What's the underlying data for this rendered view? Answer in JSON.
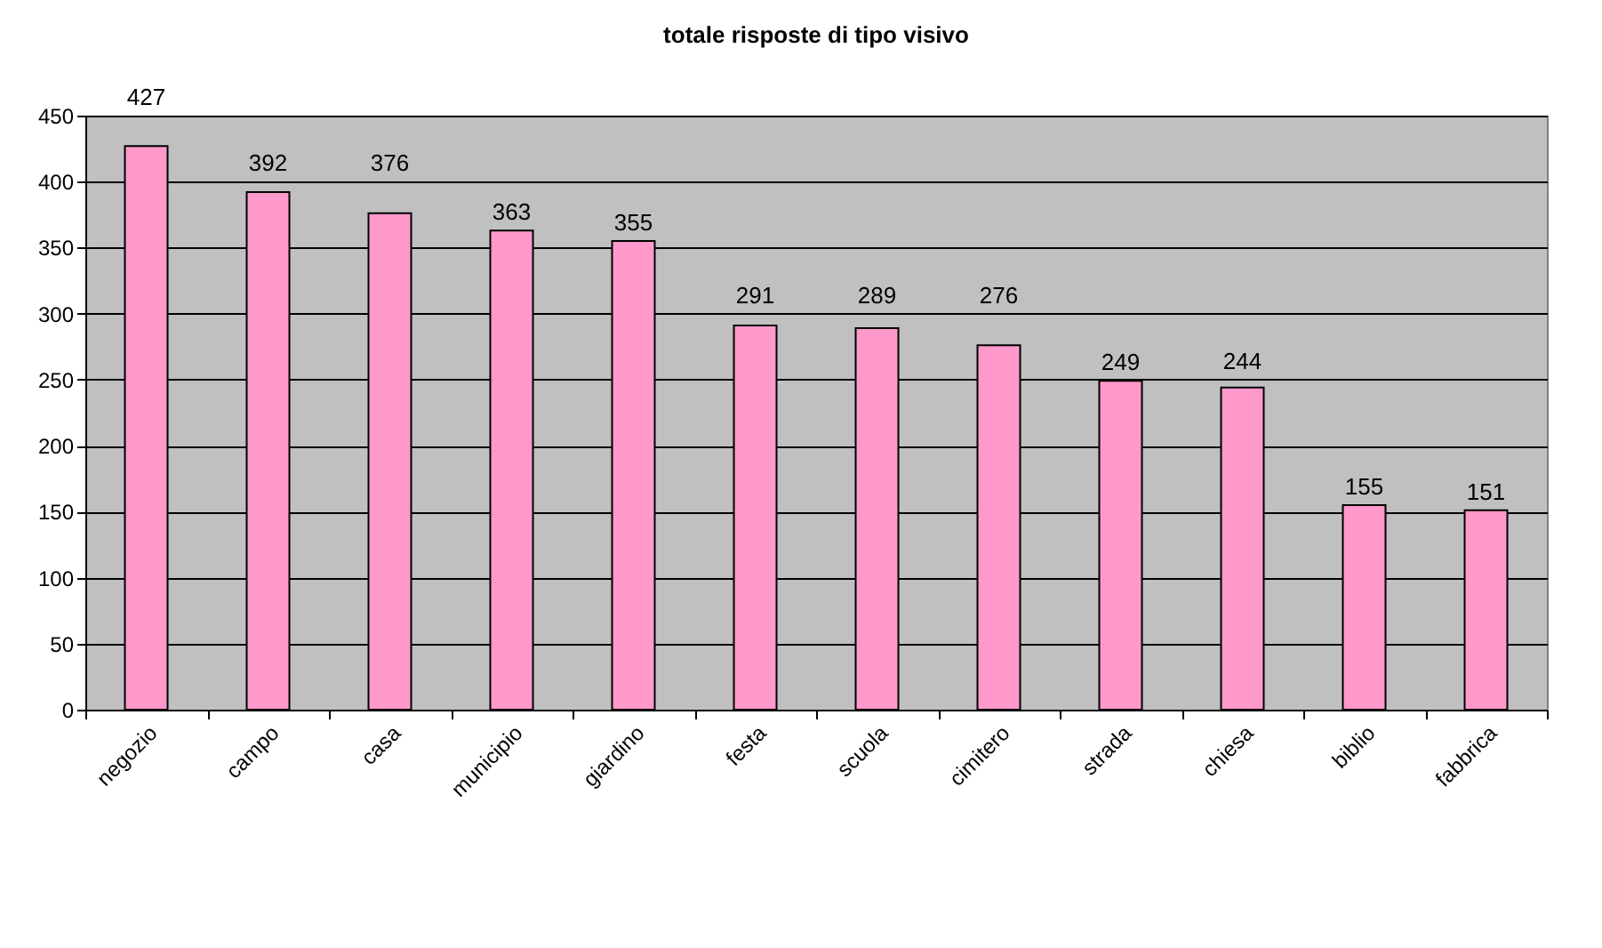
{
  "chart_data": {
    "type": "bar",
    "title": "totale risposte di tipo visivo",
    "categories": [
      "negozio",
      "campo",
      "casa",
      "municipio",
      "giardino",
      "festa",
      "scuola",
      "cimitero",
      "strada",
      "chiesa",
      "biblio",
      "fabbrica"
    ],
    "values": [
      427,
      392,
      376,
      363,
      355,
      291,
      289,
      276,
      249,
      244,
      155,
      151
    ],
    "color": "#ff99cc",
    "ylim": [
      0,
      450
    ],
    "yticks": [
      0,
      50,
      100,
      150,
      200,
      250,
      300,
      350,
      400,
      450
    ],
    "grid": "y",
    "data_labels": true
  }
}
